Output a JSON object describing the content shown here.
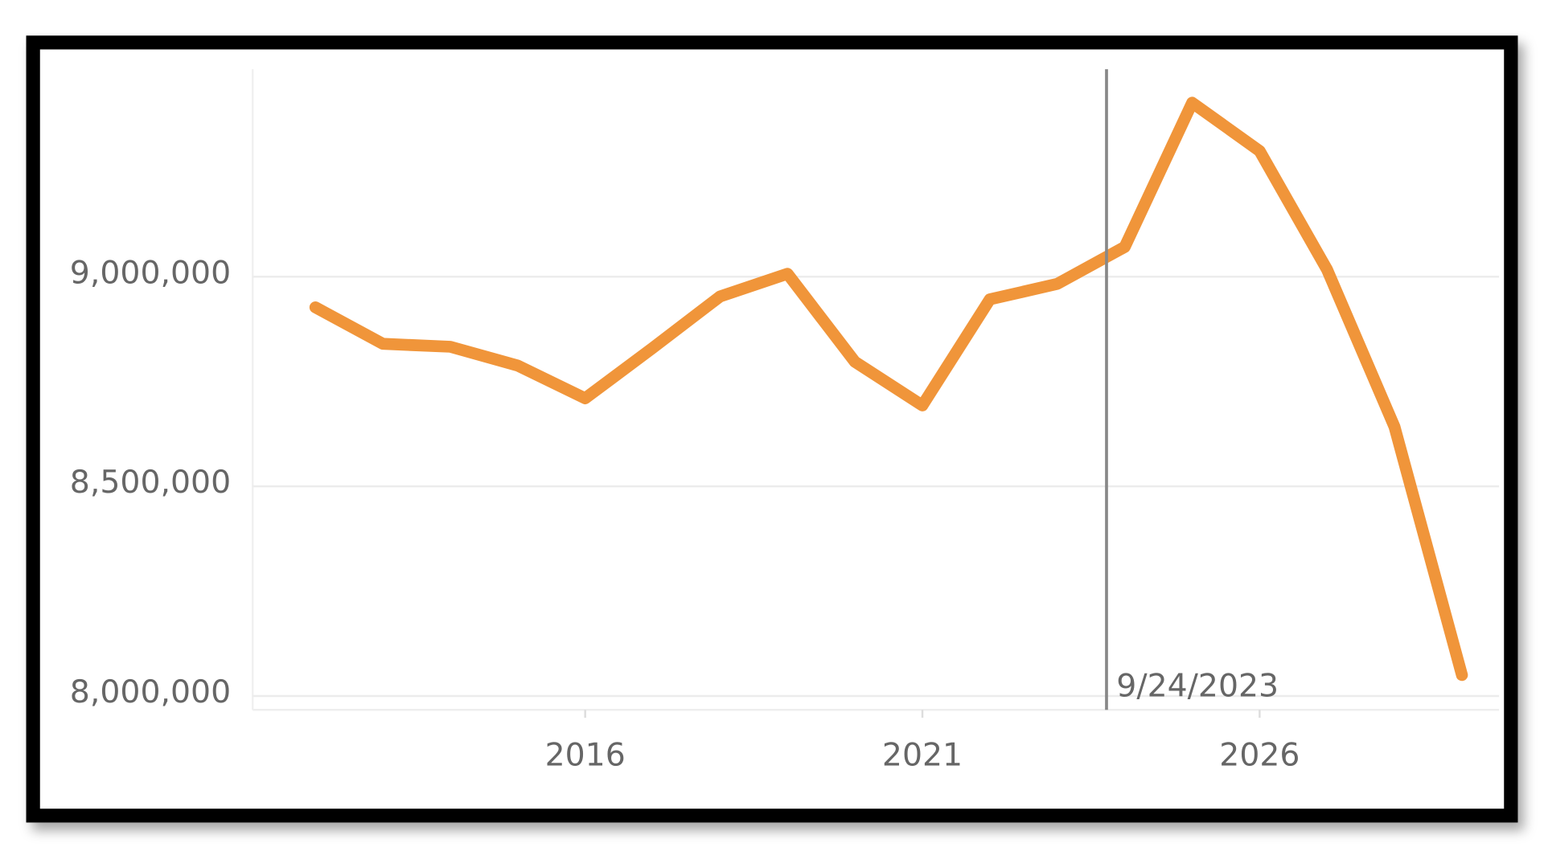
{
  "chart_data": {
    "type": "line",
    "x": [
      2012,
      2013,
      2014,
      2015,
      2016,
      2017,
      2018,
      2019,
      2020,
      2021,
      2022,
      2023,
      2024,
      2025,
      2026,
      2027,
      2028,
      2029
    ],
    "series": [
      {
        "color": "#f0953a",
        "values": [
          8927000,
          8840000,
          8833000,
          8788000,
          8710000,
          8830000,
          8953000,
          9007000,
          8797000,
          8693000,
          8946000,
          8983000,
          9071000,
          9415000,
          9300000,
          9017000,
          8642000,
          8050000
        ]
      }
    ],
    "xlim": [
      2011.07,
      2029.55
    ],
    "xticks": [
      2016,
      2021,
      2026
    ],
    "ylim": [
      7967000,
      9495000
    ],
    "yticks": [
      {
        "value": 8000000,
        "label": "8,000,000"
      },
      {
        "value": 8500000,
        "label": "8,500,000"
      },
      {
        "value": 9000000,
        "label": "9,000,000"
      }
    ],
    "grid": true,
    "reference_line": {
      "x": 2023.73,
      "label": "9/24/2023",
      "color": "#888888"
    }
  }
}
